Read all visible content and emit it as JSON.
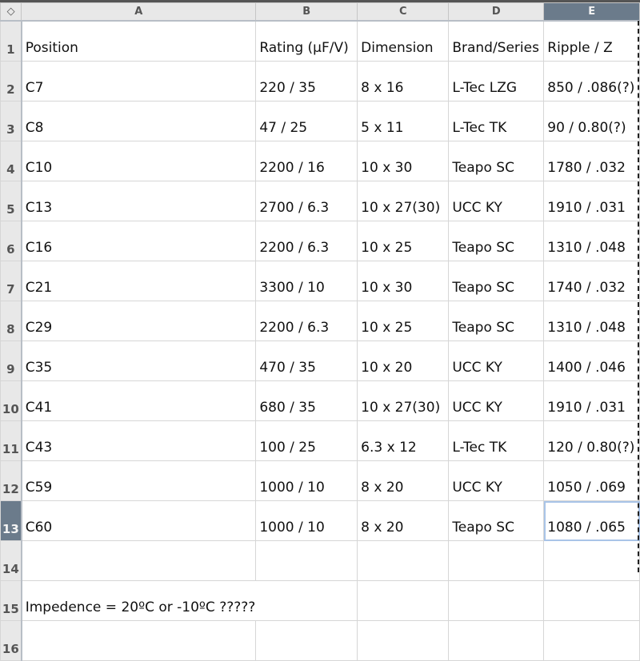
{
  "sheet": {
    "corner_icon": "select-all-diamond-icon",
    "columns": [
      "A",
      "B",
      "C",
      "D",
      "E"
    ],
    "selected_column": "E",
    "selected_row": "13",
    "active_cell": "E13",
    "rows": [
      {
        "n": "1",
        "cells": [
          "Position",
          "Rating (µF/V)",
          "Dimension",
          "Brand/Series",
          "Ripple / Z"
        ]
      },
      {
        "n": "2",
        "cells": [
          "C7",
          "220 / 35",
          "8 x 16",
          "L-Tec LZG",
          "850 / .086(?)"
        ]
      },
      {
        "n": "3",
        "cells": [
          "C8",
          "47 / 25",
          "5 x 11",
          "L-Tec TK",
          "90 / 0.80(?)"
        ]
      },
      {
        "n": "4",
        "cells": [
          "C10",
          "2200 / 16",
          "10 x 30",
          "Teapo SC",
          "1780 / .032"
        ]
      },
      {
        "n": "5",
        "cells": [
          "C13",
          "2700 / 6.3",
          "10 x 27(30)",
          "UCC KY",
          "1910 / .031"
        ]
      },
      {
        "n": "6",
        "cells": [
          "C16",
          "2200 / 6.3",
          "10 x 25",
          "Teapo SC",
          "1310 / .048"
        ]
      },
      {
        "n": "7",
        "cells": [
          "C21",
          "3300 / 10",
          "10 x 30",
          "Teapo SC",
          "1740 / .032"
        ]
      },
      {
        "n": "8",
        "cells": [
          "C29",
          "2200 / 6.3",
          "10 x 25",
          "Teapo SC",
          "1310 / .048"
        ]
      },
      {
        "n": "9",
        "cells": [
          "C35",
          "470 / 35",
          "10 x 20",
          "UCC KY",
          "1400 / .046"
        ]
      },
      {
        "n": "10",
        "cells": [
          "C41",
          "680 / 35",
          "10 x 27(30)",
          "UCC KY",
          "1910 / .031"
        ]
      },
      {
        "n": "11",
        "cells": [
          "C43",
          "100 / 25",
          "6.3 x 12",
          "L-Tec TK",
          "120 / 0.80(?)"
        ]
      },
      {
        "n": "12",
        "cells": [
          "C59",
          "1000 / 10",
          "8 x 20",
          "UCC KY",
          "1050 / .069"
        ]
      },
      {
        "n": "13",
        "cells": [
          "C60",
          "1000 / 10",
          "8 x 20",
          "Teapo SC",
          "1080 / .065"
        ]
      },
      {
        "n": "14",
        "cells": [
          "",
          "",
          "",
          "",
          ""
        ]
      },
      {
        "n": "15",
        "cells": [
          "Impedence = 20ºC or -10ºC ?????",
          "",
          "",
          "",
          ""
        ]
      },
      {
        "n": "16",
        "cells": [
          "",
          "",
          "",
          "",
          ""
        ]
      }
    ]
  },
  "colors": {
    "selected_header": "#6b7b8b",
    "header": "#e8e8e8",
    "active_cell_border": "#a9c4e8"
  }
}
